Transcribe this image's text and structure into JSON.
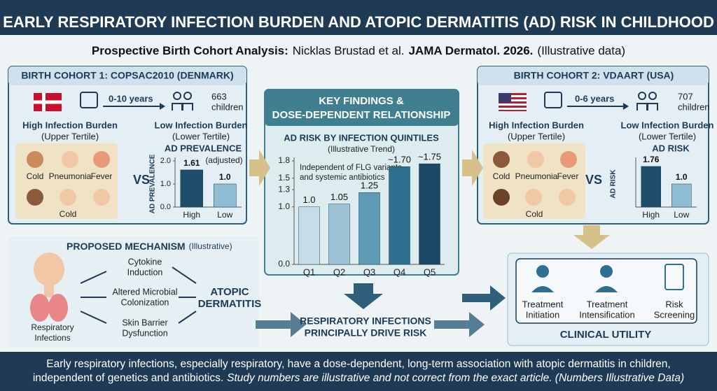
{
  "header": {
    "title": "EARLY RESPIRATORY INFECTION BURDEN AND ATOPIC DERMATITIS (AD) RISK IN CHILDHOOD",
    "subtitle_lead": "Prospective Birth Cohort Analysis:",
    "subtitle_authors": "Nicklas Brustad et al.",
    "subtitle_journal": "JAMA Dermatol. 2026.",
    "subtitle_note": "(Illustrative data)"
  },
  "cohort1": {
    "title": "BIRTH COHORT 1: COPSAC2010 (DENMARK)",
    "followup": "0-10 years",
    "n": "663",
    "n_label": "children",
    "high_label": "High Infection Burden",
    "high_sub": "(Upper Tertile)",
    "low_label": "Low Infection Burden",
    "low_sub": "(Lower Tertile)",
    "symptoms": [
      "Cold",
      "Pneumonia",
      "Fever",
      "Cold"
    ],
    "vs": "VS",
    "chart": {
      "type": "bar",
      "title": "AD PREVALENCE",
      "title_note": "(adjusted)",
      "y_label": "AD PREVALENCE",
      "categories": [
        "High",
        "Low"
      ],
      "values": [
        1.61,
        1.0
      ],
      "value_labels": [
        "1.61",
        "1.0"
      ],
      "colors": [
        "#1f4e6b",
        "#8fbdd3"
      ],
      "ylim": [
        0,
        2
      ],
      "yticks": [
        {
          "value": 0,
          "label": "0.0"
        },
        {
          "value": 1,
          "label": "1.0"
        },
        {
          "value": 2,
          "label": "2.0"
        }
      ]
    }
  },
  "findings": {
    "title_lines": [
      "KEY FINDINGS &",
      "DOSE-DEPENDENT RELATIONSHIP"
    ],
    "chart": {
      "type": "bar",
      "title": "AD RISK BY INFECTION QUINTILES",
      "subtitle": "(Illustrative Trend)",
      "annotation_lines": [
        "Independent of FLG variants",
        "and systemic antibiotics"
      ],
      "categories": [
        "Q1",
        "Q2",
        "Q3",
        "Q4",
        "Q5"
      ],
      "values": [
        1.0,
        1.05,
        1.25,
        1.7,
        1.75
      ],
      "value_labels": [
        "1.0",
        "1.05",
        "1.25",
        "~1.70",
        "~1.75"
      ],
      "colors": [
        "#c5dde8",
        "#9cc4d6",
        "#5e9bb5",
        "#2f6f8f",
        "#1c4866"
      ],
      "ylim": [
        0,
        1.8
      ],
      "yticks": [
        {
          "value": 0,
          "label": "0.0"
        },
        {
          "value": 1,
          "label": "1.0"
        },
        1.3,
        1.5,
        1.8
      ]
    },
    "conclusion_lines": [
      "RESPIRATORY INFECTIONS",
      "PRINCIPALLY DRIVE RISK"
    ]
  },
  "cohort2": {
    "title": "BIRTH COHORT 2: VDAART (USA)",
    "followup": "0-6 years",
    "n": "707",
    "n_label": "children",
    "high_label": "High Infection Burden",
    "high_sub": "(Upper Tertile)",
    "low_label": "Low Infection Burden",
    "low_sub": "(Lower Tertile)",
    "symptoms": [
      "Cold",
      "Pneumonia",
      "Fever",
      "Cold"
    ],
    "vs": "VS",
    "chart": {
      "type": "bar",
      "title": "AD RISK",
      "y_label": "AD RISK",
      "categories": [
        "High",
        "Low"
      ],
      "values": [
        1.76,
        1.0
      ],
      "value_labels": [
        "1.76",
        "1.0"
      ],
      "colors": [
        "#1f4e6b",
        "#8fbdd3"
      ],
      "ylim": [
        0,
        2
      ]
    }
  },
  "mechanism": {
    "title": "PROPOSED MECHANISM",
    "note": "(Illustrative)",
    "source_lines": [
      "Respiratory",
      "Infections"
    ],
    "pathways": [
      [
        "Cytokine",
        "Induction"
      ],
      [
        "Altered Microbial",
        "Colonization"
      ],
      [
        "Skin Barrier",
        "Dysfunction"
      ]
    ],
    "outcome_lines": [
      "ATOPIC",
      "DERMATITIS"
    ]
  },
  "clinical": {
    "items": [
      [
        "Treatment",
        "Initiation"
      ],
      [
        "Treatment",
        "Intensification"
      ],
      [
        "Risk",
        "Screening"
      ]
    ],
    "title": "CLINICAL UTILITY"
  },
  "footer": {
    "line1": "Early respiratory infections, especially respiratory, have a dose-dependent, long-term association with atopic dermatitis in children,",
    "line2": "independent of genetics and antibiotics.",
    "line2_note": "Study numbers are illustrative and not correct from the exact article. (Numbers Illustrative Data)"
  }
}
